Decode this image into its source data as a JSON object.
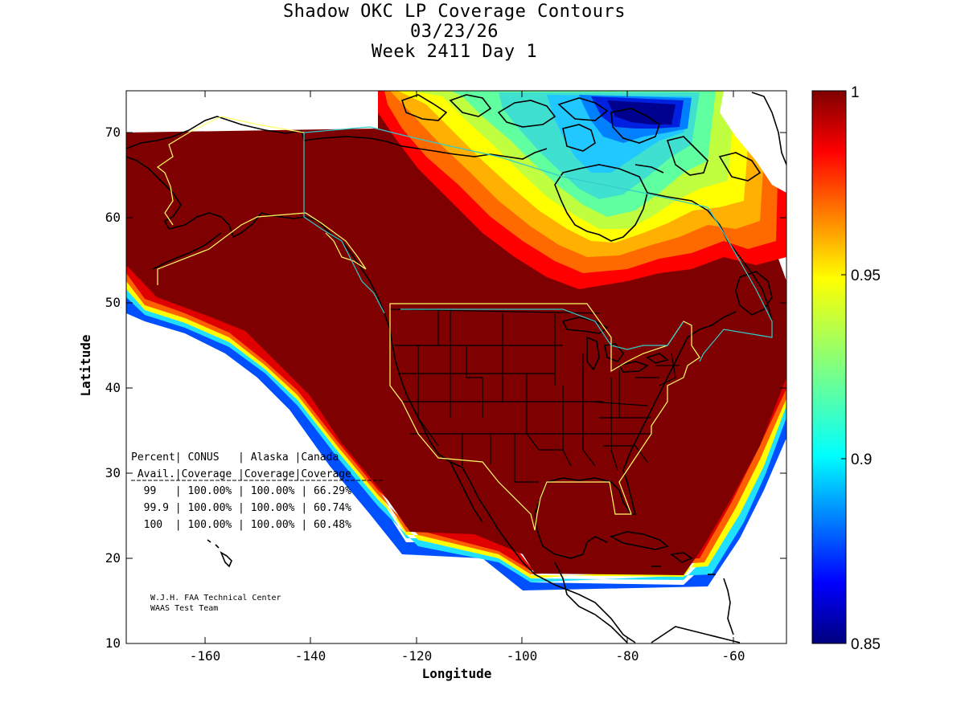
{
  "title": {
    "line1": "Shadow OKC LP Coverage Contours",
    "line2": "03/23/26",
    "line3": "Week 2411 Day 1"
  },
  "axes": {
    "xlabel": "Longitude",
    "ylabel": "Latitude",
    "xlim": [
      -175,
      -50
    ],
    "ylim": [
      10,
      75
    ],
    "xticks": [
      -160,
      -140,
      -120,
      -100,
      -80,
      -60
    ],
    "yticks": [
      10,
      20,
      30,
      40,
      50,
      60,
      70
    ]
  },
  "colorbar": {
    "range": [
      0.85,
      1
    ],
    "ticks": [
      "1",
      "0.95",
      "0.9",
      "0.85"
    ],
    "colormap": "jet"
  },
  "stats_table": {
    "header1": "Percent| CONUS   | Alaska |Canada",
    "header2": " Avail.|Coverage |Coverage|Coverage",
    "rows": [
      "  99   | 100.00% | 100.00% | 66.29%",
      "  99.9 | 100.00% | 100.00% | 60.74%",
      "  100  | 100.00% | 100.00% | 60.48%"
    ]
  },
  "credit": {
    "line1": "W.J.H. FAA Technical Center",
    "line2": "WAAS Test Team"
  },
  "colors": {
    "full_coverage": "#7f0000",
    "low_coverage": "#00008f",
    "boundary_yellow": "#ffff66",
    "boundary_cyan": "#33cccc"
  }
}
